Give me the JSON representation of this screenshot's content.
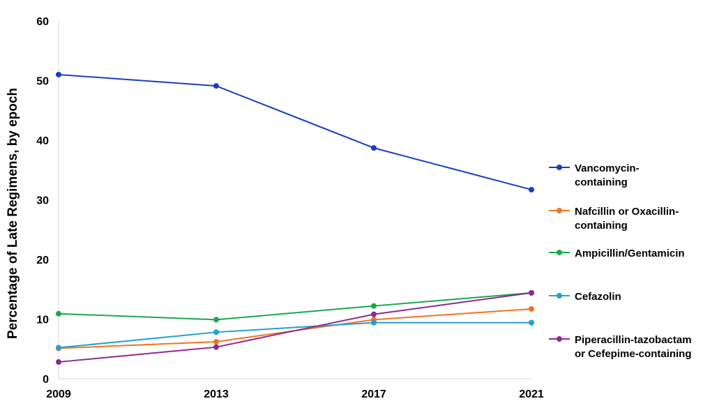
{
  "chart_data": {
    "type": "line",
    "x": [
      "2009",
      "2013",
      "2017",
      "2021"
    ],
    "ylabel": "Percentage of Late Regimens, by epoch",
    "xlabel": "",
    "ylim": [
      0,
      60
    ],
    "yticks": [
      0,
      10,
      20,
      30,
      40,
      50,
      60
    ],
    "grid": false,
    "legend_position": "right",
    "series": [
      {
        "name_lines": [
          "Vancomycin-",
          "containing"
        ],
        "color": "#1a3fbf",
        "values": [
          51.0,
          49.1,
          38.7,
          31.7
        ]
      },
      {
        "name_lines": [
          "Nafcillin or Oxacillin-",
          "containing"
        ],
        "color": "#f07522",
        "values": [
          5.1,
          6.2,
          9.9,
          11.7
        ]
      },
      {
        "name_lines": [
          "Ampicillin/Gentamicin"
        ],
        "color": "#19a84e",
        "values": [
          10.9,
          9.9,
          12.2,
          14.4
        ]
      },
      {
        "name_lines": [
          "Cefazolin"
        ],
        "color": "#21a0d2",
        "values": [
          5.2,
          7.8,
          9.4,
          9.4
        ]
      },
      {
        "name_lines": [
          "Piperacillin-tazobactam",
          "or Cefepime-containing"
        ],
        "color": "#8e2a8e",
        "values": [
          2.8,
          5.3,
          10.8,
          14.4
        ]
      }
    ]
  }
}
